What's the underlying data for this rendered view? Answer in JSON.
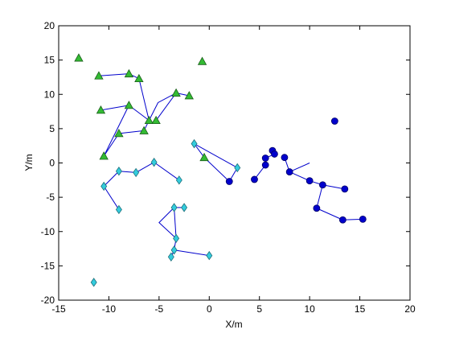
{
  "chart_data": {
    "type": "scatter",
    "xlabel": "X/m",
    "ylabel": "Y/m",
    "xlim": [
      -15,
      20
    ],
    "ylim": [
      -20,
      20
    ],
    "xticks": [
      -15,
      -10,
      -5,
      0,
      5,
      10,
      15,
      20
    ],
    "yticks": [
      -20,
      -15,
      -10,
      -5,
      0,
      5,
      10,
      15,
      20
    ],
    "grid": false,
    "edges_color": "#0000cc",
    "series": [
      {
        "marker": "triangle",
        "color": "#33bb33",
        "points": [
          [
            -13.0,
            15.3
          ],
          [
            -11.0,
            12.7
          ],
          [
            -8.0,
            13.0
          ],
          [
            -7.0,
            12.3
          ],
          [
            -10.8,
            7.7
          ],
          [
            -8.0,
            8.4
          ],
          [
            -6.0,
            6.2
          ],
          [
            -5.3,
            6.2
          ],
          [
            -3.3,
            10.2
          ],
          [
            -2.0,
            9.8
          ],
          [
            -0.7,
            14.8
          ],
          [
            -9.0,
            4.3
          ],
          [
            -6.5,
            4.7
          ],
          [
            -10.5,
            1.0
          ],
          [
            -0.5,
            0.8
          ]
        ],
        "edges": [
          [
            1,
            2
          ],
          [
            2,
            3
          ],
          [
            3,
            6
          ],
          [
            4,
            5
          ],
          [
            5,
            6
          ],
          [
            7,
            8
          ],
          [
            8,
            9
          ],
          [
            11,
            12
          ],
          [
            12,
            6
          ],
          [
            11,
            13
          ],
          [
            13,
            5
          ]
        ]
      },
      {
        "marker": "diamond",
        "color": "#33ccdd",
        "points": [
          [
            -1.5,
            2.8
          ],
          [
            2.8,
            -0.7
          ],
          [
            -5.5,
            0.1
          ],
          [
            -3.0,
            -2.5
          ],
          [
            -9.0,
            -1.2
          ],
          [
            -7.3,
            -1.4
          ],
          [
            -10.5,
            -3.4
          ],
          [
            -9.0,
            -6.8
          ],
          [
            -3.5,
            -6.5
          ],
          [
            -2.5,
            -6.5
          ],
          [
            -3.3,
            -11.0
          ],
          [
            -3.5,
            -12.7
          ],
          [
            -3.8,
            -13.7
          ],
          [
            0.0,
            -13.5
          ],
          [
            -11.5,
            -17.4
          ]
        ],
        "edges": [
          [
            0,
            1
          ],
          [
            2,
            3
          ],
          [
            4,
            5
          ],
          [
            4,
            6
          ],
          [
            6,
            7
          ],
          [
            8,
            9
          ],
          [
            8,
            10
          ],
          [
            10,
            11
          ],
          [
            11,
            12
          ],
          [
            11,
            13
          ]
        ]
      },
      {
        "marker": "circle",
        "color": "#0000cc",
        "points": [
          [
            12.5,
            6.1
          ],
          [
            6.3,
            1.8
          ],
          [
            6.5,
            1.3
          ],
          [
            5.6,
            0.7
          ],
          [
            7.5,
            0.8
          ],
          [
            5.6,
            -0.3
          ],
          [
            8.0,
            -1.3
          ],
          [
            4.5,
            -2.4
          ],
          [
            2.0,
            -2.7
          ],
          [
            10.0,
            -2.6
          ],
          [
            11.3,
            -3.2
          ],
          [
            13.5,
            -3.8
          ],
          [
            10.7,
            -6.6
          ],
          [
            13.3,
            -8.3
          ],
          [
            15.3,
            -8.2
          ]
        ],
        "edges": [
          [
            1,
            2
          ],
          [
            2,
            3
          ],
          [
            3,
            5
          ],
          [
            5,
            7
          ],
          [
            4,
            6
          ],
          [
            6,
            9
          ],
          [
            9,
            10
          ],
          [
            10,
            11
          ],
          [
            10,
            12
          ],
          [
            12,
            13
          ],
          [
            13,
            14
          ]
        ]
      }
    ],
    "extra_segments": [
      [
        [
          -6.0,
          6.2
        ],
        [
          -5.1,
          8.8
        ],
        [
          -3.3,
          10.2
        ]
      ],
      [
        [
          -1.5,
          2.8
        ],
        [
          -0.5,
          0.8
        ],
        [
          2.0,
          -2.7
        ]
      ],
      [
        [
          2.0,
          -2.7
        ],
        [
          2.8,
          -0.7
        ]
      ],
      [
        [
          -5.5,
          0.1
        ],
        [
          -7.3,
          -1.4
        ]
      ],
      [
        [
          -3.5,
          -6.5
        ],
        [
          -5.0,
          -8.7
        ],
        [
          -3.3,
          -11.0
        ]
      ],
      [
        [
          8.0,
          -1.3
        ],
        [
          10.0,
          0.0
        ]
      ]
    ]
  }
}
